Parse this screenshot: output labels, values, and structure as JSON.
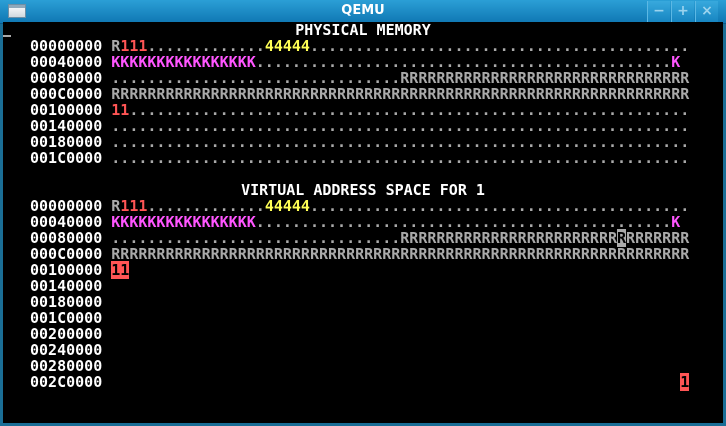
{
  "window": {
    "title": "QEMU",
    "buttons": [
      "minimize",
      "maximize",
      "close"
    ]
  },
  "colors": {
    "white": "#ffffff",
    "gray": "#aaaaaa",
    "red": "#ff5555",
    "yellow": "#ffff55",
    "magenta": "#ff55ff"
  },
  "physical": {
    "heading": "PHYSICAL MEMORY",
    "rows": [
      {
        "addr": "00000000",
        "segs": [
          [
            "R",
            "gray"
          ],
          [
            "111",
            "red"
          ],
          [
            ".............",
            "gray"
          ],
          [
            "44444",
            "yellow"
          ],
          [
            "..........................................",
            "gray"
          ]
        ]
      },
      {
        "addr": "00040000",
        "segs": [
          [
            "KKKKKKKKKKKKKKKK",
            "magenta"
          ],
          [
            "..............................................",
            "gray"
          ],
          [
            "K",
            "magenta"
          ]
        ]
      },
      {
        "addr": "00080000",
        "segs": [
          [
            "................................",
            "gray"
          ],
          [
            "RRRRRRRRRRRRRRRRRRRRRRRRRRRRRRRR",
            "gray"
          ]
        ]
      },
      {
        "addr": "000C0000",
        "segs": [
          [
            "RRRRRRRRRRRRRRRRRRRRRRRRRRRRRRRRRRRRRRRRRRRRRRRRRRRRRRRRRRRRRRRR",
            "gray"
          ]
        ]
      },
      {
        "addr": "00100000",
        "segs": [
          [
            "11",
            "red"
          ],
          [
            "..............................................................",
            "gray"
          ]
        ]
      },
      {
        "addr": "00140000",
        "segs": [
          [
            "................................................................",
            "gray"
          ]
        ]
      },
      {
        "addr": "00180000",
        "segs": [
          [
            "................................................................",
            "gray"
          ]
        ]
      },
      {
        "addr": "001C0000",
        "segs": [
          [
            "................................................................",
            "gray"
          ]
        ]
      }
    ]
  },
  "virtual": {
    "heading": "VIRTUAL ADDRESS SPACE FOR 1",
    "rows": [
      {
        "addr": "00000000",
        "segs": [
          [
            "R",
            "gray"
          ],
          [
            "111",
            "red"
          ],
          [
            ".............",
            "gray"
          ],
          [
            "44444",
            "yellow"
          ],
          [
            "..........................................",
            "gray"
          ]
        ]
      },
      {
        "addr": "00040000",
        "segs": [
          [
            "KKKKKKKKKKKKKKKK",
            "magenta"
          ],
          [
            "..............................................",
            "gray"
          ],
          [
            "K",
            "magenta"
          ]
        ]
      },
      {
        "addr": "00080000",
        "segs": [
          [
            "................................",
            "gray"
          ],
          [
            "RRRRRRRRRRRRRRRRRRRRRRRR",
            "gray"
          ],
          [
            "R",
            "hl-gray"
          ],
          [
            "RRRRRRR",
            "gray"
          ]
        ]
      },
      {
        "addr": "000C0000",
        "segs": [
          [
            "RRRRRRRRRRRRRRRRRRRRRRRRRRRRRRRRRRRRRRRRRRRRRRRRRRRRRRRRRRRRRRRR",
            "gray"
          ]
        ]
      },
      {
        "addr": "00100000",
        "segs": [
          [
            "11",
            "hl-red"
          ]
        ]
      },
      {
        "addr": "00140000",
        "segs": []
      },
      {
        "addr": "00180000",
        "segs": []
      },
      {
        "addr": "001C0000",
        "segs": []
      },
      {
        "addr": "00200000",
        "segs": []
      },
      {
        "addr": "00240000",
        "segs": []
      },
      {
        "addr": "00280000",
        "segs": []
      },
      {
        "addr": "002C0000",
        "segs": [
          [
            "                                                               ",
            "gray"
          ],
          [
            "1",
            "hl-red"
          ]
        ]
      }
    ]
  }
}
